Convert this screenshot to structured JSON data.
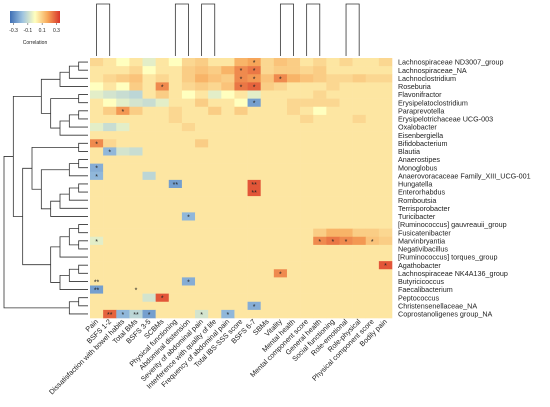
{
  "chart_data": {
    "type": "heatmap",
    "title": "",
    "legend": {
      "title": "Correlation",
      "ticks": [
        "-0.3",
        "-0.1",
        "0.1",
        "0.3"
      ],
      "range": [
        -0.35,
        0.35
      ],
      "colors": [
        "#3f6fb5",
        "#9ec3e0",
        "#ffffbf",
        "#f7a85a",
        "#d9352a"
      ]
    },
    "rows": [
      "Lachnospiraceae ND3007_group",
      "Lachnospiraceae_NA",
      "Lachnoclostridium",
      "Roseburia",
      "Flavonifractor",
      "Erysipelatoclostridium",
      "Paraprevotella",
      "Erysipelotrichaceae UCG-003",
      "Oxalobacter",
      "Eisenbergiella",
      "Bifidobacterium",
      "Blautia",
      "Anaerostipes",
      "Monoglobus",
      "Anaerovoracaceae Family_XIII_UCG-001",
      "Hungatella",
      "Enterorhabdus",
      "Romboutsia",
      "Terrisporobacter",
      "Turicibacter",
      "[Ruminococcus] gauvreauii_group",
      "Fusicatenibacter",
      "Marvinbryantia",
      "Negativibacillus",
      "[Ruminococcus] torques_group",
      "Agathobacter",
      "Lachnospiraceae NK4A136_group",
      "Butyricicoccus",
      "Faecalibacterium",
      "Peptococcus",
      "Christensenellaceae_NA",
      "Coprostanoligenes group_NA"
    ],
    "columns": [
      "Pain",
      "BSFS 1-2",
      "Dissatisfaction with bowel habits",
      "Total BMs",
      "BSFS 3-5",
      "SCBMs",
      "Physical functioning",
      "Abdominal distension",
      "Severity of abdominal pain",
      "Interference with quality of life",
      "Frequency of abdominal pain",
      "Total IBS-SSS score",
      "BSFS 6-7",
      "SBMs",
      "Vitality",
      "Mental health",
      "Mental component score",
      "General health",
      "Social functioning",
      "Role-emotional",
      "Role-physical",
      "Physical component score",
      "Bodily pain"
    ],
    "values": [
      [
        0.08,
        0.05,
        0.0,
        0.05,
        -0.05,
        0.05,
        0.0,
        0.08,
        0.1,
        0.05,
        0.05,
        0.15,
        0.18,
        0.08,
        0.12,
        0.1,
        0.05,
        0.08,
        0.05,
        0.08,
        0.05,
        0.05,
        0.08
      ],
      [
        0.05,
        0.05,
        0.05,
        0.08,
        0.0,
        0.05,
        0.05,
        0.1,
        0.12,
        0.1,
        0.15,
        0.22,
        0.25,
        0.08,
        0.1,
        0.1,
        0.08,
        0.1,
        0.05,
        0.05,
        0.05,
        0.05,
        0.05
      ],
      [
        0.05,
        0.08,
        0.1,
        0.12,
        0.05,
        0.08,
        0.05,
        0.1,
        0.15,
        0.12,
        0.1,
        0.22,
        0.2,
        0.12,
        0.22,
        0.15,
        0.12,
        0.1,
        0.08,
        0.08,
        0.1,
        0.08,
        0.08
      ],
      [
        0.0,
        0.05,
        0.0,
        0.1,
        0.05,
        0.22,
        0.05,
        0.08,
        0.1,
        0.08,
        0.12,
        0.25,
        0.28,
        0.1,
        0.08,
        0.05,
        0.05,
        0.05,
        0.08,
        0.05,
        0.05,
        0.05,
        0.05
      ],
      [
        -0.05,
        -0.08,
        -0.1,
        -0.12,
        0.05,
        0.1,
        0.05,
        0.0,
        0.05,
        -0.05,
        0.0,
        0.05,
        -0.05,
        0.05,
        0.05,
        0.05,
        0.05,
        0.08,
        0.05,
        0.05,
        0.05,
        0.05,
        0.05
      ],
      [
        0.05,
        0.0,
        -0.05,
        -0.08,
        -0.1,
        -0.05,
        0.05,
        0.05,
        0.1,
        0.05,
        0.05,
        0.0,
        -0.25,
        0.05,
        0.05,
        0.08,
        0.08,
        0.08,
        0.08,
        0.05,
        0.05,
        0.05,
        0.05
      ],
      [
        0.05,
        0.1,
        0.2,
        0.1,
        0.05,
        0.05,
        0.08,
        0.05,
        0.05,
        0.1,
        0.05,
        0.1,
        0.05,
        0.05,
        0.05,
        0.08,
        0.05,
        0.0,
        0.05,
        0.05,
        0.05,
        0.05,
        0.05
      ],
      [
        0.05,
        0.05,
        0.05,
        0.05,
        0.05,
        0.05,
        0.08,
        0.05,
        0.05,
        0.05,
        0.05,
        0.05,
        0.05,
        0.05,
        0.05,
        0.05,
        0.08,
        0.05,
        0.05,
        0.05,
        0.08,
        0.05,
        0.05
      ],
      [
        -0.05,
        -0.1,
        -0.05,
        0.05,
        0.05,
        0.05,
        0.05,
        0.08,
        0.05,
        0.05,
        0.05,
        0.05,
        0.05,
        0.05,
        0.05,
        0.05,
        0.05,
        0.05,
        0.05,
        0.05,
        0.05,
        0.05,
        0.05
      ],
      [
        0.05,
        0.05,
        0.05,
        0.05,
        0.05,
        0.05,
        0.05,
        0.05,
        0.05,
        0.05,
        0.05,
        0.05,
        0.05,
        0.05,
        0.05,
        0.05,
        0.05,
        0.05,
        0.05,
        0.05,
        0.05,
        0.05,
        0.05
      ],
      [
        0.22,
        0.08,
        0.05,
        0.05,
        0.05,
        0.05,
        0.05,
        0.05,
        0.1,
        0.05,
        0.05,
        0.05,
        0.05,
        0.05,
        0.05,
        0.05,
        0.05,
        0.05,
        0.05,
        0.05,
        0.05,
        0.05,
        0.05
      ],
      [
        0.05,
        -0.2,
        -0.08,
        -0.1,
        0.05,
        0.05,
        0.05,
        0.05,
        0.05,
        0.05,
        0.05,
        0.05,
        0.05,
        0.05,
        0.05,
        0.05,
        0.05,
        0.05,
        0.05,
        0.05,
        0.05,
        0.05,
        0.05
      ],
      [
        0.05,
        0.05,
        0.05,
        0.05,
        0.05,
        0.05,
        0.05,
        0.05,
        0.05,
        0.05,
        0.05,
        0.05,
        0.05,
        0.05,
        0.05,
        0.05,
        0.05,
        0.05,
        0.05,
        0.05,
        0.05,
        0.05,
        0.05
      ],
      [
        -0.22,
        0.05,
        0.05,
        0.05,
        0.05,
        0.05,
        0.05,
        0.05,
        0.05,
        0.05,
        0.05,
        0.05,
        0.05,
        0.05,
        0.05,
        0.05,
        0.05,
        0.05,
        0.05,
        0.05,
        0.05,
        0.05,
        0.05
      ],
      [
        -0.2,
        0.05,
        0.05,
        0.05,
        -0.12,
        0.05,
        0.05,
        0.05,
        0.05,
        0.05,
        0.05,
        0.05,
        0.05,
        0.05,
        0.05,
        0.05,
        0.05,
        0.05,
        0.05,
        0.05,
        0.05,
        0.05,
        0.05
      ],
      [
        0.05,
        0.05,
        0.05,
        0.05,
        0.05,
        0.05,
        -0.25,
        0.05,
        0.05,
        0.05,
        0.05,
        0.05,
        0.3,
        0.05,
        0.05,
        0.05,
        0.05,
        0.05,
        0.05,
        0.05,
        0.05,
        0.05,
        0.05
      ],
      [
        0.05,
        0.05,
        0.05,
        0.05,
        0.05,
        0.05,
        0.05,
        0.05,
        0.05,
        0.05,
        0.05,
        0.05,
        0.3,
        0.05,
        0.05,
        0.05,
        0.05,
        0.05,
        0.05,
        0.05,
        0.05,
        0.05,
        0.05
      ],
      [
        0.05,
        0.05,
        0.05,
        0.05,
        0.05,
        0.05,
        0.05,
        0.05,
        0.05,
        0.05,
        0.05,
        0.05,
        0.05,
        0.05,
        0.05,
        0.05,
        0.05,
        0.05,
        0.05,
        0.05,
        0.05,
        0.05,
        0.05
      ],
      [
        0.05,
        0.05,
        0.05,
        0.05,
        0.05,
        0.05,
        0.05,
        0.05,
        0.05,
        0.05,
        0.05,
        0.05,
        0.05,
        0.05,
        0.05,
        0.05,
        0.05,
        0.05,
        0.05,
        0.05,
        0.05,
        0.05,
        0.05
      ],
      [
        0.05,
        0.05,
        0.05,
        0.05,
        0.05,
        0.05,
        0.05,
        -0.2,
        0.05,
        0.05,
        0.05,
        0.05,
        0.05,
        0.05,
        0.05,
        0.05,
        0.05,
        0.05,
        0.05,
        0.05,
        0.05,
        0.05,
        0.05
      ],
      [
        0.05,
        0.05,
        0.05,
        0.05,
        0.05,
        0.05,
        0.05,
        0.05,
        0.05,
        0.05,
        0.05,
        0.05,
        0.05,
        0.05,
        0.05,
        0.05,
        0.05,
        0.05,
        0.05,
        0.05,
        0.05,
        0.05,
        0.05
      ],
      [
        0.05,
        0.05,
        0.05,
        0.05,
        0.05,
        0.05,
        0.05,
        0.05,
        0.05,
        0.05,
        0.05,
        0.05,
        0.05,
        0.05,
        0.05,
        0.05,
        0.05,
        0.1,
        0.15,
        0.15,
        0.1,
        0.1,
        0.08
      ],
      [
        -0.05,
        0.05,
        0.05,
        0.05,
        0.05,
        0.05,
        0.05,
        0.05,
        0.05,
        0.05,
        0.05,
        0.05,
        0.05,
        0.05,
        0.05,
        0.05,
        0.05,
        0.22,
        0.25,
        0.22,
        0.2,
        0.12,
        0.1
      ],
      [
        0.05,
        0.05,
        0.05,
        0.05,
        0.05,
        0.05,
        0.05,
        0.05,
        0.05,
        0.05,
        0.05,
        0.05,
        0.05,
        0.05,
        0.05,
        0.05,
        0.05,
        0.05,
        0.05,
        0.05,
        0.05,
        0.05,
        0.05
      ],
      [
        0.05,
        0.05,
        0.05,
        0.05,
        0.05,
        0.05,
        0.05,
        0.05,
        0.05,
        0.05,
        0.05,
        0.05,
        0.05,
        0.05,
        0.05,
        0.05,
        0.05,
        0.05,
        0.05,
        0.05,
        0.05,
        0.05,
        0.05
      ],
      [
        0.05,
        0.05,
        0.05,
        0.05,
        0.05,
        0.05,
        0.05,
        0.05,
        0.05,
        0.05,
        0.05,
        0.05,
        0.05,
        0.05,
        0.05,
        0.05,
        0.05,
        0.05,
        0.05,
        0.05,
        0.05,
        0.05,
        0.3
      ],
      [
        0.05,
        0.05,
        0.05,
        0.05,
        0.05,
        0.05,
        0.05,
        0.05,
        0.05,
        0.05,
        0.05,
        0.05,
        0.05,
        0.05,
        0.22,
        0.05,
        0.05,
        0.05,
        0.05,
        0.05,
        0.05,
        0.05,
        0.05
      ],
      [
        0.05,
        0.05,
        0.05,
        0.05,
        0.05,
        0.05,
        0.05,
        -0.22,
        0.05,
        0.05,
        0.05,
        0.05,
        0.05,
        0.05,
        0.05,
        0.05,
        0.05,
        0.05,
        0.05,
        0.05,
        0.05,
        0.05,
        0.05
      ],
      [
        -0.25,
        0.05,
        0.05,
        0.05,
        0.05,
        0.05,
        0.05,
        0.05,
        0.05,
        0.05,
        0.05,
        0.05,
        0.05,
        0.05,
        0.05,
        0.05,
        0.05,
        0.05,
        0.05,
        0.05,
        0.05,
        0.05,
        0.05
      ],
      [
        0.05,
        0.05,
        0.05,
        0.05,
        -0.08,
        0.3,
        0.05,
        0.05,
        0.05,
        0.05,
        0.05,
        0.05,
        0.05,
        0.05,
        0.05,
        0.05,
        0.05,
        0.05,
        0.05,
        0.05,
        0.05,
        0.05,
        0.05
      ],
      [
        0.05,
        0.05,
        0.05,
        0.05,
        0.05,
        0.05,
        0.05,
        0.05,
        0.05,
        0.05,
        0.05,
        0.05,
        -0.22,
        0.05,
        0.05,
        0.05,
        0.05,
        0.05,
        0.05,
        0.05,
        0.05,
        0.05,
        0.05
      ],
      [
        0.05,
        0.28,
        -0.2,
        -0.12,
        -0.25,
        0.05,
        0.05,
        0.05,
        -0.08,
        0.05,
        -0.2,
        0.05,
        0.05,
        0.05,
        0.05,
        0.05,
        0.05,
        0.05,
        0.05,
        0.05,
        0.05,
        0.05,
        0.05
      ]
    ],
    "significance": [
      {
        "row": 0,
        "col": 12,
        "mark": "*"
      },
      {
        "row": 1,
        "col": 11,
        "mark": "*"
      },
      {
        "row": 1,
        "col": 12,
        "mark": "*"
      },
      {
        "row": 2,
        "col": 11,
        "mark": "*"
      },
      {
        "row": 2,
        "col": 12,
        "mark": "*"
      },
      {
        "row": 2,
        "col": 14,
        "mark": "*"
      },
      {
        "row": 3,
        "col": 5,
        "mark": "*"
      },
      {
        "row": 3,
        "col": 11,
        "mark": "*"
      },
      {
        "row": 3,
        "col": 12,
        "mark": "*"
      },
      {
        "row": 5,
        "col": 12,
        "mark": "*"
      },
      {
        "row": 6,
        "col": 2,
        "mark": "*"
      },
      {
        "row": 10,
        "col": 0,
        "mark": "*"
      },
      {
        "row": 11,
        "col": 1,
        "mark": "*"
      },
      {
        "row": 13,
        "col": 0,
        "mark": "*"
      },
      {
        "row": 14,
        "col": 0,
        "mark": "*"
      },
      {
        "row": 15,
        "col": 6,
        "mark": "**"
      },
      {
        "row": 15,
        "col": 12,
        "mark": "**"
      },
      {
        "row": 16,
        "col": 12,
        "mark": "**"
      },
      {
        "row": 19,
        "col": 7,
        "mark": "*"
      },
      {
        "row": 22,
        "col": 17,
        "mark": "*"
      },
      {
        "row": 22,
        "col": 18,
        "mark": "*"
      },
      {
        "row": 22,
        "col": 19,
        "mark": "*"
      },
      {
        "row": 22,
        "col": 21,
        "mark": "*"
      },
      {
        "row": 22,
        "col": 0,
        "mark": "*"
      },
      {
        "row": 25,
        "col": 22,
        "mark": "*"
      },
      {
        "row": 26,
        "col": 14,
        "mark": "*"
      },
      {
        "row": 27,
        "col": 7,
        "mark": "*"
      },
      {
        "row": 27,
        "col": 0,
        "mark": "**"
      },
      {
        "row": 28,
        "col": 0,
        "mark": "**"
      },
      {
        "row": 28,
        "col": 3,
        "mark": "*"
      },
      {
        "row": 29,
        "col": 5,
        "mark": "*"
      },
      {
        "row": 30,
        "col": 12,
        "mark": "*"
      },
      {
        "row": 31,
        "col": 1,
        "mark": "**"
      },
      {
        "row": 31,
        "col": 2,
        "mark": "*"
      },
      {
        "row": 31,
        "col": 3,
        "mark": "**"
      },
      {
        "row": 31,
        "col": 4,
        "mark": "*"
      },
      {
        "row": 31,
        "col": 8,
        "mark": "*"
      },
      {
        "row": 31,
        "col": 10,
        "mark": "*"
      }
    ],
    "row_dendrogram": [
      [
        0,
        1
      ],
      [
        32,
        2
      ],
      [
        33,
        3
      ],
      [
        4,
        5
      ],
      [
        6,
        7
      ],
      [
        36,
        8
      ],
      [
        37,
        9
      ],
      [
        35,
        38
      ],
      [
        34,
        39
      ],
      [
        10,
        11
      ],
      [
        12,
        13
      ],
      [
        42,
        14
      ],
      [
        15,
        16
      ],
      [
        44,
        17
      ],
      [
        45,
        18
      ],
      [
        46,
        19
      ],
      [
        43,
        47
      ],
      [
        41,
        48
      ],
      [
        20,
        21
      ],
      [
        22,
        23
      ],
      [
        50,
        51
      ],
      [
        52,
        24
      ],
      [
        25,
        26
      ],
      [
        54,
        27
      ],
      [
        55,
        28
      ],
      [
        53,
        56
      ],
      [
        49,
        57
      ],
      [
        40,
        58
      ],
      [
        29,
        30
      ],
      [
        60,
        31
      ],
      [
        59,
        61
      ]
    ],
    "col_dendrogram": [
      [
        0,
        1
      ],
      [
        32,
        2
      ],
      [
        33,
        3
      ],
      [
        34,
        4
      ],
      [
        35,
        5
      ],
      [
        6,
        7
      ],
      [
        8,
        9
      ],
      [
        37,
        10
      ],
      [
        38,
        11
      ],
      [
        36,
        39
      ],
      [
        40,
        12
      ],
      [
        41,
        13
      ],
      [
        14,
        15
      ],
      [
        16,
        17
      ],
      [
        43,
        44
      ],
      [
        45,
        18
      ],
      [
        19,
        20
      ],
      [
        46,
        47
      ],
      [
        48,
        21
      ],
      [
        49,
        22
      ],
      [
        42,
        50
      ]
    ]
  }
}
